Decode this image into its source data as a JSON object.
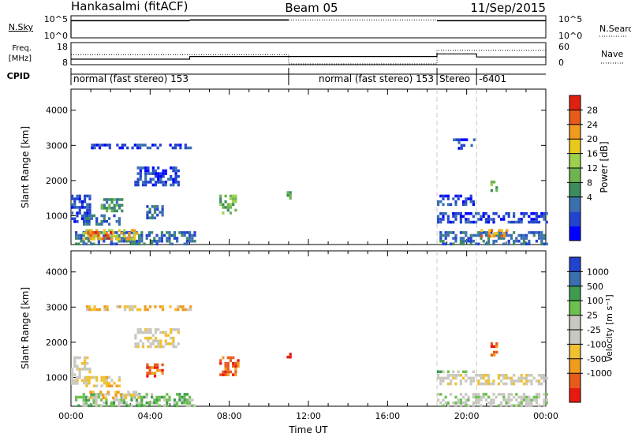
{
  "header": {
    "station": "Hankasalmi (fitACF)",
    "beam": "Beam 05",
    "date": "11/Sep/2015"
  },
  "chart_data": [
    {
      "type": "line",
      "panel": "noise",
      "left_label": "N.Sky",
      "left_ticks": [
        "10^5",
        "10^0"
      ],
      "right_label": "N.Search",
      "right_ticks": [
        "10^5",
        "10^0"
      ],
      "series": [
        {
          "name": "N.Sky",
          "style": "solid",
          "segments": [
            {
              "x": [
                0,
                6
              ],
              "y": [
                10000,
                10000
              ]
            },
            {
              "x": [
                6,
                11
              ],
              "y": [
                15000,
                15000
              ]
            },
            {
              "x": [
                18.5,
                24
              ],
              "y": [
                10000,
                10000
              ]
            }
          ]
        },
        {
          "name": "N.Search",
          "style": "dotted",
          "segments": [
            {
              "x": [
                11,
                18.5
              ],
              "y": [
                15000,
                15000
              ]
            }
          ]
        }
      ]
    },
    {
      "type": "line",
      "panel": "frequency",
      "left_label_1": "Freq.",
      "left_label_2": "[MHz]",
      "left_ticks": [
        "18",
        "8"
      ],
      "ylim_left": [
        8,
        18
      ],
      "right_label": "Nave",
      "right_ticks": [
        "60",
        "0"
      ],
      "ylim_right": [
        0,
        60
      ],
      "freq": {
        "x": [
          0,
          6,
          6,
          18.5,
          18.5,
          20.5,
          20.5,
          24
        ],
        "y": [
          10.3,
          10.3,
          11.6,
          11.6,
          12.9,
          12.9,
          11.4,
          11.4
        ]
      },
      "nave": {
        "x": [
          0,
          11,
          11,
          18.5,
          18.5,
          24
        ],
        "y": [
          27,
          27,
          0,
          0,
          40,
          40
        ]
      }
    },
    {
      "type": "table",
      "panel": "cpid",
      "label": "CPID",
      "segments": [
        {
          "start": 0,
          "end": 18.5,
          "text": "normal (fast stereo) 153",
          "align": "left"
        },
        {
          "start": 11,
          "end": 18.5,
          "text": "normal (fast stereo) 153",
          "align": "right"
        },
        {
          "start": 18.5,
          "end": 20.5,
          "text": "Stereo",
          "align": "left"
        },
        {
          "start": 20.5,
          "end": 24,
          "text": "-6401",
          "align": "left"
        }
      ]
    },
    {
      "type": "heatmap",
      "panel": "power",
      "ylabel": "Slant Range [km]",
      "xlim": [
        0,
        24
      ],
      "ylim": [
        180,
        4600
      ],
      "yticks": [
        1000,
        2000,
        3000,
        4000
      ],
      "colorbar": {
        "label": "Power [dB]",
        "ticks": [
          "28",
          "24",
          "20",
          "16",
          "12",
          "8",
          "4"
        ],
        "colors": [
          "#0000ff",
          "#2244cc",
          "#3a6fb0",
          "#3e8c5e",
          "#6cb550",
          "#9bd24c",
          "#e8c81a",
          "#f09a1e",
          "#e85a1a",
          "#e02010"
        ]
      },
      "blobs": [
        {
          "x0": 0.2,
          "x1": 6.3,
          "y0": 200,
          "y1": 560,
          "v": 2
        },
        {
          "x0": 0.6,
          "x1": 3.4,
          "y0": 300,
          "y1": 620,
          "v": 6
        },
        {
          "x0": 0.8,
          "x1": 2.2,
          "y0": 380,
          "y1": 560,
          "v": 8
        },
        {
          "x0": 0,
          "x1": 0.9,
          "y0": 800,
          "y1": 1600,
          "v": 1
        },
        {
          "x0": 0.6,
          "x1": 2.4,
          "y0": 780,
          "y1": 1040,
          "v": 2
        },
        {
          "x0": 1.5,
          "x1": 2.6,
          "y0": 1150,
          "y1": 1500,
          "v": 3
        },
        {
          "x0": 3.2,
          "x1": 5.4,
          "y0": 1900,
          "y1": 2400,
          "v": 1
        },
        {
          "x0": 3.8,
          "x1": 4.6,
          "y0": 900,
          "y1": 1300,
          "v": 2
        },
        {
          "x0": 7.5,
          "x1": 8.5,
          "y0": 1100,
          "y1": 1600,
          "v": 4
        },
        {
          "x0": 10.9,
          "x1": 11.1,
          "y0": 1500,
          "y1": 1700,
          "v": 3
        },
        {
          "x0": 18.5,
          "x1": 24,
          "y0": 200,
          "y1": 560,
          "v": 2
        },
        {
          "x0": 18.5,
          "x1": 24,
          "y0": 780,
          "y1": 1100,
          "v": 1
        },
        {
          "x0": 18.5,
          "x1": 20.3,
          "y0": 1300,
          "y1": 1600,
          "v": 1
        },
        {
          "x0": 20.7,
          "x1": 22.1,
          "y0": 430,
          "y1": 620,
          "v": 7
        },
        {
          "x0": 21.2,
          "x1": 21.5,
          "y0": 1600,
          "y1": 2000,
          "v": 4
        },
        {
          "x0": 0.5,
          "x1": 6,
          "y0": 2950,
          "y1": 3050,
          "v": 1
        },
        {
          "x0": 19.3,
          "x1": 20.4,
          "y0": 2950,
          "y1": 3200,
          "v": 1
        }
      ]
    },
    {
      "type": "heatmap",
      "panel": "velocity",
      "ylabel": "Slant Range [km]",
      "xlabel": "Time UT",
      "xlim": [
        0,
        24
      ],
      "ylim": [
        180,
        4600
      ],
      "yticks": [
        1000,
        2000,
        3000,
        4000
      ],
      "xticks": [
        "00:00",
        "04:00",
        "08:00",
        "12:00",
        "16:00",
        "20:00",
        "00:00"
      ],
      "colorbar": {
        "label": "Velocity [m s⁻¹]",
        "ticks": [
          "1000",
          "500",
          "100",
          "25",
          "-25",
          "-100",
          "-500",
          "-1000"
        ],
        "colors": [
          "#e81a10",
          "#e85a1a",
          "#f09a1e",
          "#f0c030",
          "#c8c8c0",
          "#c8c8c0",
          "#6cc050",
          "#3e9c4e",
          "#3a6fb0",
          "#2244cc"
        ]
      },
      "blobs": [
        {
          "x0": 0.2,
          "x1": 6.3,
          "y0": 200,
          "y1": 560,
          "v": 6
        },
        {
          "x0": 0.8,
          "x1": 3.4,
          "y0": 400,
          "y1": 620,
          "v": 3
        },
        {
          "x0": 0,
          "x1": 0.9,
          "y0": 800,
          "y1": 1600,
          "v": 4
        },
        {
          "x0": 0.6,
          "x1": 2.4,
          "y0": 780,
          "y1": 1040,
          "v": 3
        },
        {
          "x0": 3.2,
          "x1": 5.4,
          "y0": 1900,
          "y1": 2400,
          "v": 4
        },
        {
          "x0": 3.8,
          "x1": 4.6,
          "y0": 1000,
          "y1": 1400,
          "v": 1
        },
        {
          "x0": 7.5,
          "x1": 8.5,
          "y0": 1100,
          "y1": 1600,
          "v": 1
        },
        {
          "x0": 10.9,
          "x1": 11.1,
          "y0": 1500,
          "y1": 1700,
          "v": 0
        },
        {
          "x0": 18.5,
          "x1": 24,
          "y0": 200,
          "y1": 560,
          "v": 5
        },
        {
          "x0": 18.5,
          "x1": 24,
          "y0": 780,
          "y1": 1100,
          "v": 4
        },
        {
          "x0": 18.5,
          "x1": 20.3,
          "y0": 1150,
          "y1": 1200,
          "v": 6
        },
        {
          "x0": 21.2,
          "x1": 21.5,
          "y0": 1600,
          "y1": 2000,
          "v": 1
        },
        {
          "x0": 0.5,
          "x1": 6,
          "y0": 2950,
          "y1": 3050,
          "v": 3
        }
      ]
    }
  ]
}
